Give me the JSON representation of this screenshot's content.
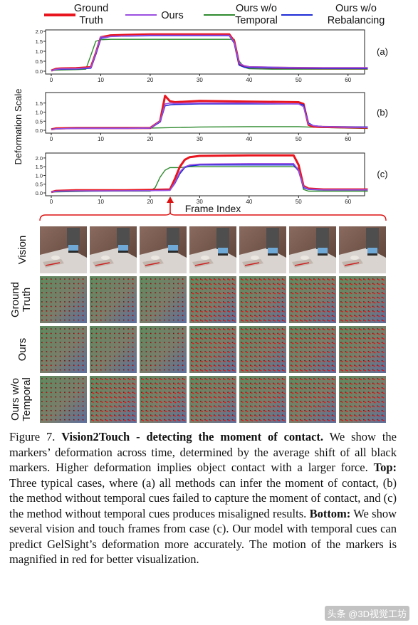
{
  "legend": [
    {
      "label": "Ground\nTruth",
      "color": "#e8141e"
    },
    {
      "label": "Ours",
      "color": "#9b4fe0"
    },
    {
      "label": "Ours w/o\nTemporal",
      "color": "#2f8a2f"
    },
    {
      "label": "Ours w/o\nRebalancing",
      "color": "#1f2bd6"
    }
  ],
  "ylabel": "Deformation Scale",
  "xlabel": "Frame Index",
  "chart_data": [
    {
      "type": "line",
      "panel": "(a)",
      "xlim": [
        0,
        64
      ],
      "ylim": [
        0,
        2.0
      ],
      "xticks": [
        0,
        10,
        20,
        30,
        40,
        50,
        60
      ],
      "yticks": [
        0.0,
        0.5,
        1.0,
        1.5,
        2.0
      ],
      "series": [
        {
          "name": "Ground Truth",
          "x": [
            0,
            1,
            2,
            5,
            8,
            9,
            10,
            11,
            12,
            15,
            20,
            25,
            30,
            36,
            37,
            38,
            39,
            40,
            45,
            50,
            55,
            60,
            64
          ],
          "y": [
            0.03,
            0.12,
            0.14,
            0.15,
            0.2,
            0.9,
            1.7,
            1.75,
            1.8,
            1.82,
            1.85,
            1.85,
            1.85,
            1.85,
            1.5,
            0.35,
            0.25,
            0.2,
            0.17,
            0.16,
            0.15,
            0.15,
            0.15
          ]
        },
        {
          "name": "Ours",
          "x": [
            0,
            1,
            2,
            5,
            8,
            9,
            10,
            11,
            12,
            15,
            20,
            25,
            30,
            36,
            37,
            38,
            39,
            40,
            45,
            50,
            55,
            60,
            64
          ],
          "y": [
            0.03,
            0.1,
            0.12,
            0.13,
            0.18,
            0.9,
            1.72,
            1.7,
            1.74,
            1.77,
            1.8,
            1.8,
            1.8,
            1.8,
            1.45,
            0.4,
            0.28,
            0.22,
            0.2,
            0.18,
            0.17,
            0.17,
            0.17
          ]
        },
        {
          "name": "Ours w/o Temporal",
          "x": [
            0,
            1,
            2,
            5,
            7,
            8,
            9,
            10,
            12,
            15,
            20,
            25,
            30,
            36,
            37,
            38,
            39,
            40,
            45,
            50,
            55,
            60,
            64
          ],
          "y": [
            0.03,
            0.05,
            0.06,
            0.08,
            0.1,
            0.8,
            1.5,
            1.58,
            1.6,
            1.6,
            1.6,
            1.6,
            1.6,
            1.6,
            1.6,
            0.5,
            0.2,
            0.12,
            0.1,
            0.1,
            0.1,
            0.1,
            0.1
          ]
        },
        {
          "name": "Ours w/o Rebalancing",
          "x": [
            0,
            1,
            2,
            5,
            8,
            9,
            10,
            11,
            12,
            15,
            20,
            25,
            30,
            36,
            37,
            38,
            39,
            40,
            45,
            50,
            55,
            60,
            64
          ],
          "y": [
            0.03,
            0.09,
            0.1,
            0.11,
            0.15,
            0.85,
            1.65,
            1.68,
            1.75,
            1.76,
            1.78,
            1.78,
            1.78,
            1.78,
            1.4,
            0.3,
            0.2,
            0.18,
            0.16,
            0.15,
            0.14,
            0.14,
            0.14
          ]
        }
      ]
    },
    {
      "type": "line",
      "panel": "(b)",
      "xlim": [
        0,
        64
      ],
      "ylim": [
        0,
        2.0
      ],
      "xticks": [
        0,
        10,
        20,
        30,
        40,
        50,
        60
      ],
      "yticks": [
        0.0,
        0.5,
        1.0,
        1.5
      ],
      "series": [
        {
          "name": "Ground Truth",
          "x": [
            0,
            1,
            5,
            10,
            15,
            20,
            22,
            23,
            24,
            25,
            30,
            40,
            50,
            51,
            52,
            53,
            55,
            60,
            64
          ],
          "y": [
            0.05,
            0.1,
            0.12,
            0.12,
            0.12,
            0.13,
            0.5,
            1.9,
            1.6,
            1.55,
            1.62,
            1.58,
            1.55,
            1.45,
            0.3,
            0.2,
            0.18,
            0.16,
            0.15
          ]
        },
        {
          "name": "Ours",
          "x": [
            0,
            1,
            5,
            10,
            15,
            20,
            22,
            23,
            24,
            25,
            30,
            40,
            50,
            51,
            52,
            53,
            55,
            60,
            64
          ],
          "y": [
            0.05,
            0.08,
            0.1,
            0.1,
            0.1,
            0.12,
            0.5,
            1.45,
            1.5,
            1.48,
            1.5,
            1.5,
            1.45,
            1.3,
            0.35,
            0.25,
            0.2,
            0.16,
            0.15
          ]
        },
        {
          "name": "Ours w/o Temporal",
          "x": [
            0,
            1,
            5,
            10,
            15,
            20,
            25,
            30,
            40,
            50,
            55,
            60,
            64
          ],
          "y": [
            0.05,
            0.07,
            0.1,
            0.12,
            0.12,
            0.12,
            0.15,
            0.18,
            0.2,
            0.2,
            0.15,
            0.12,
            0.1
          ]
        },
        {
          "name": "Ours w/o Rebalancing",
          "x": [
            0,
            1,
            5,
            10,
            15,
            20,
            22,
            23,
            24,
            25,
            30,
            40,
            50,
            51,
            52,
            53,
            55,
            60,
            64
          ],
          "y": [
            0.05,
            0.08,
            0.11,
            0.11,
            0.11,
            0.12,
            0.45,
            1.35,
            1.4,
            1.42,
            1.45,
            1.45,
            1.45,
            1.4,
            0.4,
            0.25,
            0.2,
            0.18,
            0.18
          ]
        }
      ]
    },
    {
      "type": "line",
      "panel": "(c)",
      "xlim": [
        0,
        64
      ],
      "ylim": [
        0,
        2.2
      ],
      "xticks": [
        0,
        10,
        20,
        30,
        40,
        50,
        60
      ],
      "yticks": [
        0.0,
        0.5,
        1.0,
        1.5,
        2.0
      ],
      "series": [
        {
          "name": "Ground Truth",
          "x": [
            0,
            1,
            5,
            10,
            15,
            20,
            24,
            25,
            26,
            27,
            28,
            30,
            40,
            49,
            50,
            51,
            52,
            55,
            60,
            64
          ],
          "y": [
            0.05,
            0.12,
            0.15,
            0.15,
            0.15,
            0.17,
            0.2,
            0.8,
            1.5,
            1.9,
            2.05,
            2.12,
            2.15,
            2.15,
            1.6,
            0.4,
            0.25,
            0.2,
            0.2,
            0.2
          ]
        },
        {
          "name": "Ours",
          "x": [
            0,
            1,
            5,
            10,
            15,
            20,
            24,
            25,
            26,
            27,
            28,
            30,
            40,
            49,
            50,
            51,
            52,
            55,
            60,
            64
          ],
          "y": [
            0.05,
            0.1,
            0.12,
            0.12,
            0.12,
            0.13,
            0.15,
            0.6,
            1.2,
            1.5,
            1.6,
            1.65,
            1.68,
            1.68,
            1.3,
            0.35,
            0.22,
            0.18,
            0.18,
            0.18
          ]
        },
        {
          "name": "Ours w/o Temporal",
          "x": [
            0,
            1,
            5,
            10,
            15,
            20,
            21,
            22,
            23,
            24,
            25,
            26,
            28,
            30,
            40,
            49,
            50,
            51,
            52,
            55,
            60,
            64
          ],
          "y": [
            0.05,
            0.06,
            0.08,
            0.1,
            0.1,
            0.1,
            0.3,
            0.9,
            1.3,
            1.45,
            1.45,
            1.45,
            1.5,
            1.5,
            1.5,
            1.5,
            1.4,
            0.2,
            0.1,
            0.1,
            0.1,
            0.1
          ]
        },
        {
          "name": "Ours w/o Rebalancing",
          "x": [
            0,
            1,
            5,
            10,
            15,
            20,
            24,
            25,
            26,
            27,
            28,
            30,
            40,
            49,
            50,
            51,
            52,
            55,
            60,
            64
          ],
          "y": [
            0.05,
            0.09,
            0.11,
            0.11,
            0.12,
            0.13,
            0.15,
            0.55,
            1.1,
            1.45,
            1.55,
            1.6,
            1.6,
            1.6,
            1.25,
            0.3,
            0.2,
            0.17,
            0.17,
            0.17
          ]
        }
      ]
    }
  ],
  "grid": {
    "rows": [
      {
        "label": "Vision",
        "kind": "vision"
      },
      {
        "label": "Ground\nTruth",
        "kind": "touch",
        "contact": [
          false,
          false,
          false,
          true,
          true,
          true,
          true
        ]
      },
      {
        "label": "Ours",
        "kind": "touch",
        "contact": [
          false,
          false,
          false,
          true,
          true,
          true,
          true
        ]
      },
      {
        "label": "Ours w/o\nTemporal",
        "kind": "touch",
        "contact": [
          false,
          true,
          true,
          true,
          true,
          true,
          true
        ]
      }
    ],
    "columns": 7
  },
  "caption": {
    "fig": "Figure 7. ",
    "title": "Vision2Touch - detecting the moment of contact.",
    "p1": " We show the markers’ deformation across time, determined by the average shift of all black markers. Higher deformation implies object contact with a larger force. ",
    "top": "Top:",
    "p2": " Three typical cases, where (a) all methods can infer the moment of contact, (b) the method without temporal cues failed to capture the moment of contact, and (c) the method without temporal cues produces misaligned results. ",
    "bottom": "Bottom:",
    "p3": " We show several vision and touch frames from case (c). Our model with temporal cues can predict GelSight’s deformation more accurately. The motion of the markers is magnified in red for better visualization."
  },
  "watermark": "头条 @3D视觉工坊"
}
